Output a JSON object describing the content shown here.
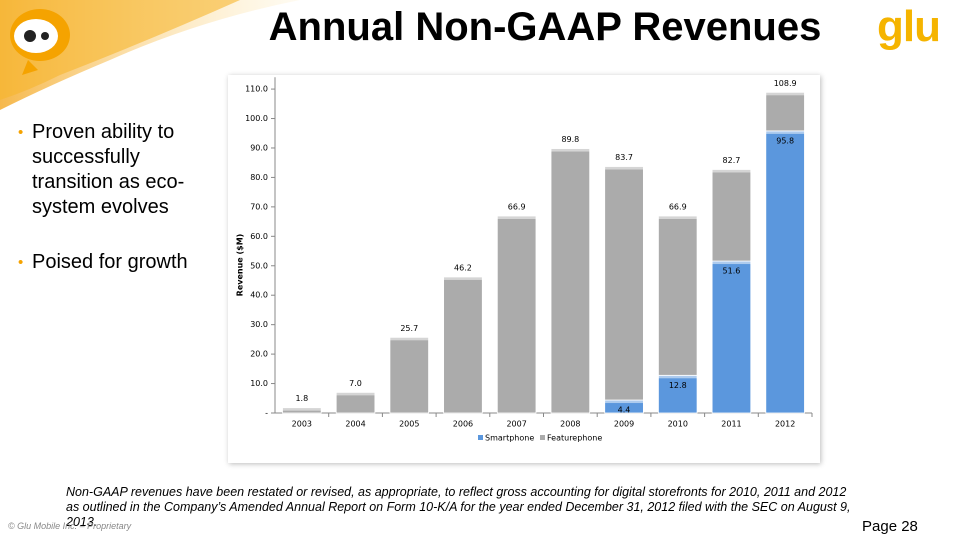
{
  "header": {
    "title": "Annual Non-GAAP Revenues",
    "logo": "glu"
  },
  "bullets": [
    "Proven ability to successfully transition as eco-system evolves",
    "Poised for growth"
  ],
  "chart_data": {
    "type": "stacked_bar",
    "y_label": "Revenue ($M)",
    "categories": [
      "2003",
      "2004",
      "2005",
      "2006",
      "2007",
      "2008",
      "2009",
      "2010",
      "2011",
      "2012"
    ],
    "series": [
      {
        "name": "Smartphone",
        "color": "#5b97dd",
        "values": [
          null,
          null,
          null,
          null,
          null,
          null,
          4.4,
          12.8,
          51.6,
          95.8
        ]
      },
      {
        "name": "Featurephone",
        "color": "#ababab",
        "values": [
          1.8,
          7.0,
          25.7,
          46.2,
          66.9,
          89.8,
          79.3,
          54.1,
          31.1,
          13.1
        ]
      }
    ],
    "totals": {
      "values": [
        1.8,
        7.0,
        25.7,
        46.2,
        66.9,
        89.8,
        83.7,
        66.9,
        82.7,
        108.9
      ],
      "value_labels": [
        "1.8",
        "7.0",
        "25.7",
        "46.2",
        "66.9",
        "89.8",
        "83.7",
        "66.9",
        "82.7",
        "108.9"
      ]
    },
    "ylim": [
      0,
      114
    ],
    "yticks": [
      {
        "value": 0,
        "label": "-"
      },
      {
        "value": 10,
        "label": "10.0"
      },
      {
        "value": 20,
        "label": "20.0"
      },
      {
        "value": 30,
        "label": "30.0"
      },
      {
        "value": 40,
        "label": "40.0"
      },
      {
        "value": 50,
        "label": "50.0"
      },
      {
        "value": 60,
        "label": "60.0"
      },
      {
        "value": 70,
        "label": "70.0"
      },
      {
        "value": 80,
        "label": "80.0"
      },
      {
        "value": 90,
        "label": "90.0"
      },
      {
        "value": 100,
        "label": "100.0"
      },
      {
        "value": 110,
        "label": "110.0"
      }
    ],
    "grid": false,
    "legend": "bottom"
  },
  "footnote": "Non-GAAP revenues have been restated or revised, as appropriate, to reflect gross accounting for digital storefronts for 2010, 2011 and 2012 as outlined in the Company’s Amended Annual Report on Form 10-K/A for the year ended December 31, 2012 filed with the SEC on August 9, 2013.",
  "footer": {
    "copyright": "© Glu Mobile Inc. – Proprietary",
    "page": "Page 28"
  }
}
